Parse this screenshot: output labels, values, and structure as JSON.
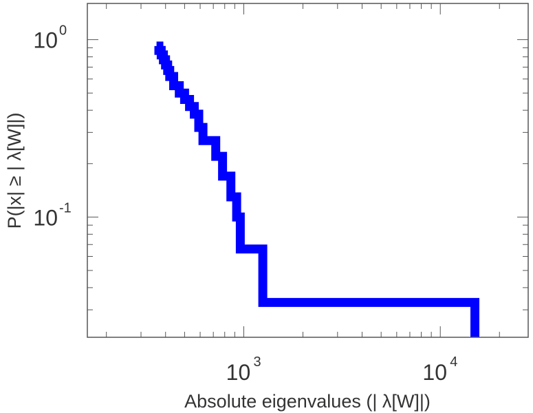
{
  "chart_data": {
    "type": "line",
    "step": "post",
    "xscale": "log",
    "yscale": "log",
    "xlabel": "Absolute eigenvalues (|     λ[W]|)",
    "ylabel": "P(|x|  ≥ | λ[W]|)",
    "xlim": [
      160,
      28000
    ],
    "ylim": [
      0.021,
      1.6
    ],
    "xticks": [
      {
        "value": 1000,
        "base": "10",
        "exp": "3"
      },
      {
        "value": 10000,
        "base": "10",
        "exp": "4"
      }
    ],
    "yticks": [
      {
        "value": 1,
        "base": "10",
        "exp": "0"
      },
      {
        "value": 0.1,
        "base": "10",
        "exp": "-1"
      }
    ],
    "grid": false,
    "color": "#0000ff",
    "series": [
      {
        "x": [
          360,
          370,
          380,
          390,
          400,
          410,
          420,
          440,
          470,
          500,
          530,
          560,
          590,
          620,
          720,
          780,
          860,
          920,
          960,
          1250,
          15000
        ],
        "y": [
          0.92,
          0.87,
          0.82,
          0.77,
          0.72,
          0.67,
          0.62,
          0.55,
          0.5,
          0.46,
          0.42,
          0.38,
          0.32,
          0.27,
          0.22,
          0.17,
          0.13,
          0.1,
          0.066,
          0.033,
          0.021
        ]
      }
    ]
  }
}
